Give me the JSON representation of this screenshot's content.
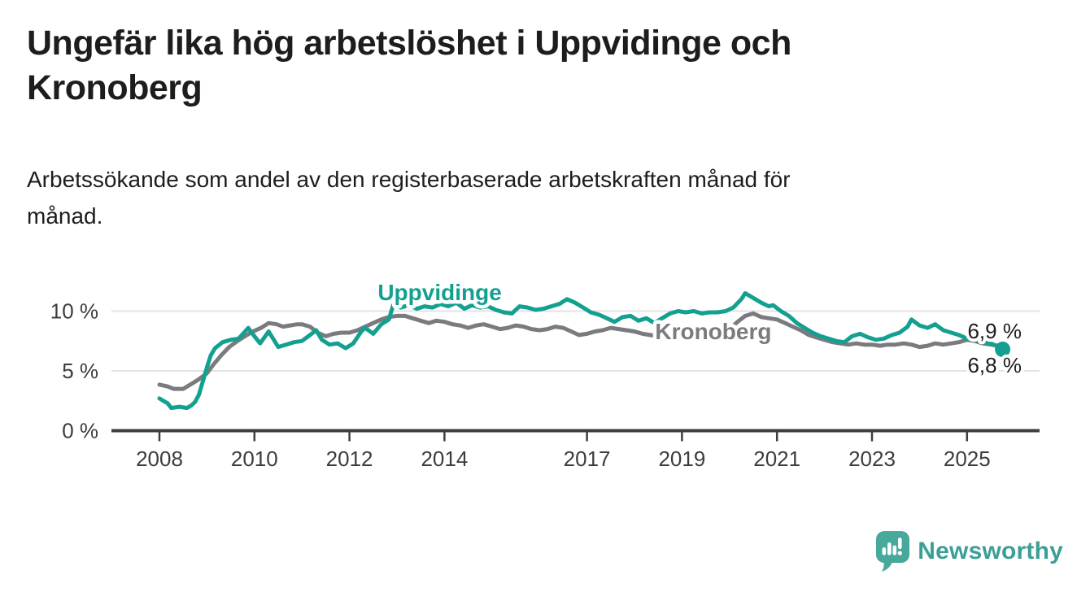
{
  "header": {
    "title_lines": [
      "Ungefär lika hög arbetslöshet i Uppvidinge och",
      "Kronoberg"
    ],
    "subtitle_lines": [
      "Arbetssökande som andel av den registerbaserade arbetskraften månad för",
      "månad."
    ]
  },
  "footer": {
    "brand": "Newsworthy",
    "logo_icon": "newsworthy-speech-bubble-bar-chart-icon",
    "brand_color": "#3a9f95",
    "icon_color": "#47a89c"
  },
  "chart_data": {
    "type": "line",
    "title": "Ungefär lika hög arbetslöshet i Uppvidinge och Kronoberg",
    "subtitle": "Arbetssökande som andel av den registerbaserade arbetskraften månad för månad.",
    "x_unit": "decimal_year",
    "xlim": [
      2007.0,
      2026.5
    ],
    "ylim": [
      0,
      13.5
    ],
    "grid": "horizontal",
    "legend_position": "inline-labels",
    "colors": {
      "uppvidinge": "#14a091",
      "kronoberg": "#7b7b7f",
      "gridline": "#e3e3e3",
      "axis": "#3e3e3e",
      "tick_text": "#3c3c3c",
      "value_label_text": "#1d1d1b"
    },
    "x_axis": {
      "ticks": [
        {
          "value": 2008,
          "label": "2008"
        },
        {
          "value": 2010,
          "label": "2010"
        },
        {
          "value": 2012,
          "label": "2012"
        },
        {
          "value": 2014,
          "label": "2014"
        },
        {
          "value": 2017,
          "label": "2017"
        },
        {
          "value": 2019,
          "label": "2019"
        },
        {
          "value": 2021,
          "label": "2021"
        },
        {
          "value": 2023,
          "label": "2023"
        },
        {
          "value": 2025,
          "label": "2025"
        }
      ]
    },
    "y_axis": {
      "ticks": [
        {
          "value": 0,
          "label": "0 %",
          "gridline": false
        },
        {
          "value": 5,
          "label": "5 %",
          "gridline": true
        },
        {
          "value": 10,
          "label": "10 %",
          "gridline": true
        }
      ]
    },
    "series": [
      {
        "name": "Uppvidinge",
        "color": "#14a091",
        "stroke_width": 5,
        "end_dot": true,
        "end_value_label": "6,8 %",
        "points": [
          [
            2008.0,
            2.7
          ],
          [
            2008.08,
            2.5
          ],
          [
            2008.17,
            2.3
          ],
          [
            2008.25,
            1.9
          ],
          [
            2008.42,
            2.0
          ],
          [
            2008.58,
            1.9
          ],
          [
            2008.67,
            2.1
          ],
          [
            2008.75,
            2.4
          ],
          [
            2008.83,
            3.0
          ],
          [
            2008.92,
            4.2
          ],
          [
            2009.0,
            5.3
          ],
          [
            2009.08,
            6.3
          ],
          [
            2009.17,
            6.9
          ],
          [
            2009.33,
            7.4
          ],
          [
            2009.5,
            7.6
          ],
          [
            2009.67,
            7.7
          ],
          [
            2009.87,
            8.6
          ],
          [
            2010.0,
            7.9
          ],
          [
            2010.12,
            7.3
          ],
          [
            2010.3,
            8.3
          ],
          [
            2010.5,
            7.0
          ],
          [
            2010.67,
            7.2
          ],
          [
            2010.83,
            7.4
          ],
          [
            2011.0,
            7.5
          ],
          [
            2011.17,
            8.0
          ],
          [
            2011.3,
            8.4
          ],
          [
            2011.42,
            7.6
          ],
          [
            2011.58,
            7.2
          ],
          [
            2011.75,
            7.3
          ],
          [
            2011.92,
            6.9
          ],
          [
            2012.08,
            7.3
          ],
          [
            2012.25,
            8.3
          ],
          [
            2012.33,
            8.6
          ],
          [
            2012.5,
            8.1
          ],
          [
            2012.67,
            8.9
          ],
          [
            2012.83,
            9.3
          ],
          [
            2012.92,
            10.5
          ],
          [
            2013.08,
            10.3
          ],
          [
            2013.25,
            10.5
          ],
          [
            2013.42,
            10.2
          ],
          [
            2013.58,
            10.4
          ],
          [
            2013.75,
            10.3
          ],
          [
            2013.92,
            10.6
          ],
          [
            2014.08,
            10.4
          ],
          [
            2014.25,
            10.7
          ],
          [
            2014.42,
            10.2
          ],
          [
            2014.58,
            10.5
          ],
          [
            2014.75,
            10.3
          ],
          [
            2014.92,
            10.4
          ],
          [
            2015.08,
            10.1
          ],
          [
            2015.25,
            9.9
          ],
          [
            2015.42,
            9.8
          ],
          [
            2015.58,
            10.4
          ],
          [
            2015.75,
            10.3
          ],
          [
            2015.92,
            10.1
          ],
          [
            2016.08,
            10.2
          ],
          [
            2016.25,
            10.4
          ],
          [
            2016.42,
            10.6
          ],
          [
            2016.58,
            11.0
          ],
          [
            2016.75,
            10.7
          ],
          [
            2016.92,
            10.3
          ],
          [
            2017.08,
            9.9
          ],
          [
            2017.25,
            9.7
          ],
          [
            2017.42,
            9.4
          ],
          [
            2017.58,
            9.1
          ],
          [
            2017.75,
            9.5
          ],
          [
            2017.92,
            9.6
          ],
          [
            2018.08,
            9.2
          ],
          [
            2018.25,
            9.4
          ],
          [
            2018.42,
            9.0
          ],
          [
            2018.58,
            9.4
          ],
          [
            2018.75,
            9.8
          ],
          [
            2018.92,
            10.0
          ],
          [
            2019.08,
            9.9
          ],
          [
            2019.25,
            10.0
          ],
          [
            2019.42,
            9.8
          ],
          [
            2019.58,
            9.9
          ],
          [
            2019.75,
            9.9
          ],
          [
            2019.92,
            10.0
          ],
          [
            2020.08,
            10.3
          ],
          [
            2020.25,
            11.0
          ],
          [
            2020.33,
            11.5
          ],
          [
            2020.5,
            11.1
          ],
          [
            2020.67,
            10.7
          ],
          [
            2020.83,
            10.4
          ],
          [
            2020.92,
            10.5
          ],
          [
            2021.08,
            10.0
          ],
          [
            2021.25,
            9.6
          ],
          [
            2021.42,
            9.0
          ],
          [
            2021.58,
            8.6
          ],
          [
            2021.75,
            8.2
          ],
          [
            2021.92,
            7.9
          ],
          [
            2022.08,
            7.7
          ],
          [
            2022.25,
            7.5
          ],
          [
            2022.42,
            7.4
          ],
          [
            2022.58,
            7.9
          ],
          [
            2022.75,
            8.1
          ],
          [
            2022.92,
            7.8
          ],
          [
            2023.08,
            7.6
          ],
          [
            2023.25,
            7.7
          ],
          [
            2023.42,
            8.0
          ],
          [
            2023.58,
            8.2
          ],
          [
            2023.75,
            8.7
          ],
          [
            2023.83,
            9.3
          ],
          [
            2024.0,
            8.8
          ],
          [
            2024.17,
            8.6
          ],
          [
            2024.33,
            8.9
          ],
          [
            2024.5,
            8.4
          ],
          [
            2024.67,
            8.2
          ],
          [
            2024.83,
            8.0
          ],
          [
            2025.0,
            7.7
          ],
          [
            2025.17,
            7.6
          ],
          [
            2025.33,
            7.4
          ],
          [
            2025.5,
            7.3
          ],
          [
            2025.67,
            7.0
          ],
          [
            2025.75,
            6.8
          ]
        ]
      },
      {
        "name": "Kronoberg",
        "color": "#7b7b7f",
        "stroke_width": 5,
        "end_dot": false,
        "end_value_label": "6,9 %",
        "points": [
          [
            2008.0,
            3.85
          ],
          [
            2008.17,
            3.7
          ],
          [
            2008.3,
            3.5
          ],
          [
            2008.5,
            3.5
          ],
          [
            2008.67,
            3.9
          ],
          [
            2008.83,
            4.3
          ],
          [
            2009.0,
            4.8
          ],
          [
            2009.13,
            5.5
          ],
          [
            2009.3,
            6.3
          ],
          [
            2009.47,
            7.0
          ],
          [
            2009.64,
            7.5
          ],
          [
            2009.8,
            7.9
          ],
          [
            2009.97,
            8.3
          ],
          [
            2010.14,
            8.6
          ],
          [
            2010.3,
            9.0
          ],
          [
            2010.47,
            8.9
          ],
          [
            2010.6,
            8.7
          ],
          [
            2010.75,
            8.8
          ],
          [
            2010.9,
            8.9
          ],
          [
            2011.0,
            8.9
          ],
          [
            2011.17,
            8.7
          ],
          [
            2011.33,
            8.2
          ],
          [
            2011.5,
            7.9
          ],
          [
            2011.67,
            8.1
          ],
          [
            2011.83,
            8.2
          ],
          [
            2012.0,
            8.2
          ],
          [
            2012.17,
            8.4
          ],
          [
            2012.33,
            8.7
          ],
          [
            2012.5,
            9.0
          ],
          [
            2012.67,
            9.3
          ],
          [
            2012.83,
            9.5
          ],
          [
            2013.0,
            9.6
          ],
          [
            2013.17,
            9.6
          ],
          [
            2013.33,
            9.4
          ],
          [
            2013.5,
            9.2
          ],
          [
            2013.67,
            9.0
          ],
          [
            2013.83,
            9.2
          ],
          [
            2014.0,
            9.1
          ],
          [
            2014.17,
            8.9
          ],
          [
            2014.33,
            8.8
          ],
          [
            2014.5,
            8.6
          ],
          [
            2014.67,
            8.8
          ],
          [
            2014.83,
            8.9
          ],
          [
            2015.0,
            8.7
          ],
          [
            2015.17,
            8.5
          ],
          [
            2015.33,
            8.6
          ],
          [
            2015.5,
            8.8
          ],
          [
            2015.67,
            8.7
          ],
          [
            2015.83,
            8.5
          ],
          [
            2016.0,
            8.4
          ],
          [
            2016.17,
            8.5
          ],
          [
            2016.33,
            8.7
          ],
          [
            2016.5,
            8.6
          ],
          [
            2016.67,
            8.3
          ],
          [
            2016.83,
            8.0
          ],
          [
            2017.0,
            8.1
          ],
          [
            2017.17,
            8.3
          ],
          [
            2017.33,
            8.4
          ],
          [
            2017.5,
            8.6
          ],
          [
            2017.67,
            8.5
          ],
          [
            2017.83,
            8.4
          ],
          [
            2018.0,
            8.3
          ],
          [
            2018.17,
            8.1
          ],
          [
            2018.33,
            8.0
          ],
          [
            2018.5,
            7.9
          ],
          [
            2018.67,
            8.0
          ],
          [
            2018.83,
            8.1
          ],
          [
            2019.0,
            8.0
          ],
          [
            2019.17,
            8.0
          ],
          [
            2019.33,
            8.1
          ],
          [
            2019.5,
            8.2
          ],
          [
            2019.67,
            8.2
          ],
          [
            2019.83,
            8.3
          ],
          [
            2020.0,
            8.5
          ],
          [
            2020.17,
            9.1
          ],
          [
            2020.33,
            9.6
          ],
          [
            2020.5,
            9.8
          ],
          [
            2020.67,
            9.5
          ],
          [
            2020.83,
            9.4
          ],
          [
            2021.0,
            9.3
          ],
          [
            2021.17,
            9.0
          ],
          [
            2021.33,
            8.7
          ],
          [
            2021.5,
            8.4
          ],
          [
            2021.67,
            8.0
          ],
          [
            2021.83,
            7.8
          ],
          [
            2022.0,
            7.6
          ],
          [
            2022.17,
            7.4
          ],
          [
            2022.33,
            7.3
          ],
          [
            2022.5,
            7.2
          ],
          [
            2022.67,
            7.3
          ],
          [
            2022.83,
            7.2
          ],
          [
            2023.0,
            7.2
          ],
          [
            2023.17,
            7.1
          ],
          [
            2023.33,
            7.2
          ],
          [
            2023.5,
            7.2
          ],
          [
            2023.67,
            7.3
          ],
          [
            2023.83,
            7.2
          ],
          [
            2024.0,
            7.0
          ],
          [
            2024.17,
            7.1
          ],
          [
            2024.33,
            7.3
          ],
          [
            2024.5,
            7.2
          ],
          [
            2024.67,
            7.3
          ],
          [
            2024.83,
            7.4
          ],
          [
            2025.0,
            7.6
          ],
          [
            2025.17,
            7.5
          ],
          [
            2025.33,
            7.3
          ],
          [
            2025.5,
            7.2
          ],
          [
            2025.67,
            7.1
          ],
          [
            2025.75,
            6.9
          ]
        ]
      }
    ],
    "annotations": {
      "series_labels": [
        {
          "text": "Uppvidinge",
          "color": "#14a091",
          "x": 2013.9,
          "y": 11.6,
          "anchor": "middle"
        },
        {
          "text": "Kronoberg",
          "color": "#7b7b7f",
          "x": 2019.66,
          "y": 8.33,
          "anchor": "middle"
        }
      ],
      "value_labels": [
        {
          "text": "6,9 %",
          "x": 2026.15,
          "y": 8.33,
          "anchor": "end"
        },
        {
          "text": "6,8 %",
          "x": 2026.15,
          "y": 5.48,
          "anchor": "end"
        }
      ]
    }
  }
}
